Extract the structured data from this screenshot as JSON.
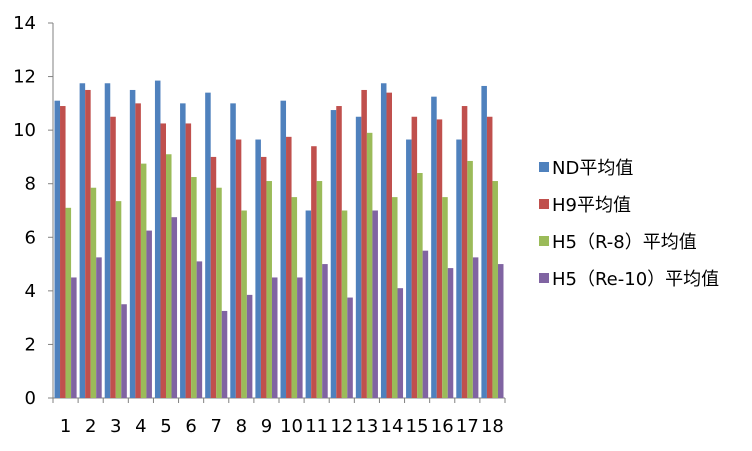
{
  "chart_data": {
    "type": "bar",
    "categories": [
      "1",
      "2",
      "3",
      "4",
      "5",
      "6",
      "7",
      "8",
      "9",
      "10",
      "11",
      "12",
      "13",
      "14",
      "15",
      "16",
      "17",
      "18"
    ],
    "ylim": [
      0,
      14
    ],
    "yticks": [
      0,
      2,
      4,
      6,
      8,
      10,
      12,
      14
    ],
    "grid": false,
    "legend_position": "right",
    "series": [
      {
        "name": "ND平均值",
        "color": "#4F81BD",
        "values": [
          11.1,
          11.75,
          11.75,
          11.5,
          11.85,
          11.0,
          11.4,
          11.0,
          9.65,
          11.1,
          7.0,
          10.75,
          10.5,
          11.75,
          9.65,
          11.25,
          9.65,
          11.65
        ]
      },
      {
        "name": "H9平均值",
        "color": "#C0504D",
        "values": [
          10.9,
          11.5,
          10.5,
          11.0,
          10.25,
          10.25,
          9.0,
          9.65,
          9.0,
          9.75,
          9.4,
          10.9,
          11.5,
          11.4,
          10.5,
          10.4,
          10.9,
          10.5
        ]
      },
      {
        "name": "H5（R-8）平均值",
        "color": "#9BBB59",
        "values": [
          7.1,
          7.85,
          7.35,
          8.75,
          9.1,
          8.25,
          7.85,
          7.0,
          8.1,
          7.5,
          8.1,
          7.0,
          9.9,
          7.5,
          8.4,
          7.5,
          8.85,
          8.1
        ]
      },
      {
        "name": "H5（Re-10）平均值",
        "color": "#8064A2",
        "values": [
          4.5,
          5.25,
          3.5,
          6.25,
          6.75,
          5.1,
          3.25,
          3.85,
          4.5,
          4.5,
          5.0,
          3.75,
          7.0,
          4.1,
          5.5,
          4.85,
          5.25,
          5.0
        ]
      }
    ]
  }
}
